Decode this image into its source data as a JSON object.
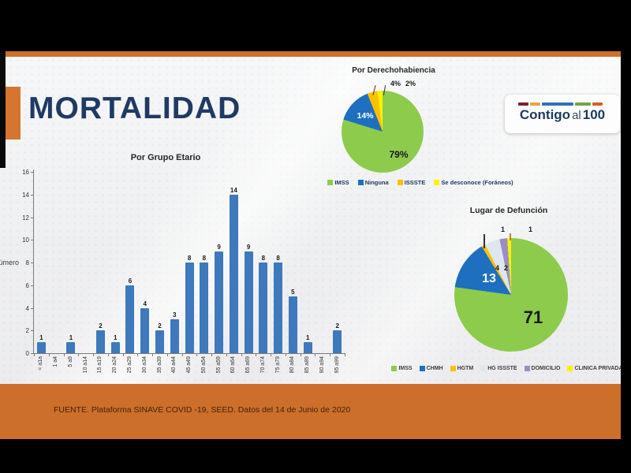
{
  "frame": {
    "letterbox_color": "#000000",
    "accent_orange": "#CC6F2B"
  },
  "slide": {
    "title": "MORTALIDAD",
    "title_color": "#1F3A63",
    "source_text": "FUENTE. Plataforma SINAVE COVID -19, SEED. Datos del 14 de Junio de 2020",
    "logo": {
      "word1": "Contigo",
      "word2": "al",
      "word3": "100",
      "colorbar_colors": [
        "#7B2328",
        "#E3A73B",
        "#2F71B8",
        "#70A443",
        "#D2622A"
      ]
    }
  },
  "chart_data": [
    {
      "type": "bar",
      "title": "Por Grupo Etario",
      "xlabel": "",
      "ylabel": "Número",
      "ylim": [
        0,
        16
      ],
      "yticks": [
        0,
        2,
        4,
        6,
        8,
        10,
        12,
        14,
        16
      ],
      "grid": false,
      "bar_color": "#3D79BC",
      "categories": [
        "< a1a",
        "1 a4",
        "5 a9",
        "10 a14",
        "15 a19",
        "20 a24",
        "25 a29",
        "30 a34",
        "35 a39",
        "40 a44",
        "45 a49",
        "50 a54",
        "55 a59",
        "60 a64",
        "65 a69",
        "70 a74",
        "75 a79",
        "80 a84",
        "85 a89",
        "90 a94",
        "95 a99"
      ],
      "values": [
        1,
        0,
        1,
        0,
        2,
        1,
        6,
        4,
        2,
        3,
        8,
        8,
        9,
        14,
        9,
        8,
        8,
        5,
        1,
        0,
        2
      ]
    },
    {
      "type": "pie",
      "title": "Por Derechohabiencia",
      "legend_position": "bottom",
      "labels": [
        "IMSS",
        "Ninguna",
        "ISSSTE",
        "Se desconoce (Foráneos)"
      ],
      "values": [
        79,
        14,
        4,
        2
      ],
      "value_labels": [
        "79%",
        "14%",
        "4%",
        "2%"
      ],
      "colors": [
        "#8DCB4C",
        "#1E6FC0",
        "#FFC000",
        "#FFF100"
      ]
    },
    {
      "type": "pie",
      "title": "Lugar de Defunción",
      "legend_position": "bottom",
      "labels": [
        "IMSS",
        "CHMH",
        "HGTM",
        "HG ISSSTE",
        "DOMICILIO",
        "CLINICA PRIVADA"
      ],
      "values": [
        71,
        13,
        1,
        4,
        2,
        1
      ],
      "value_labels": [
        "71",
        "13",
        "1",
        "4",
        "2",
        "1"
      ],
      "colors": [
        "#8DCB4C",
        "#1E6FC0",
        "#FFC000",
        "#DEE6EF",
        "#9B8EC4",
        "#FFF100"
      ]
    }
  ]
}
